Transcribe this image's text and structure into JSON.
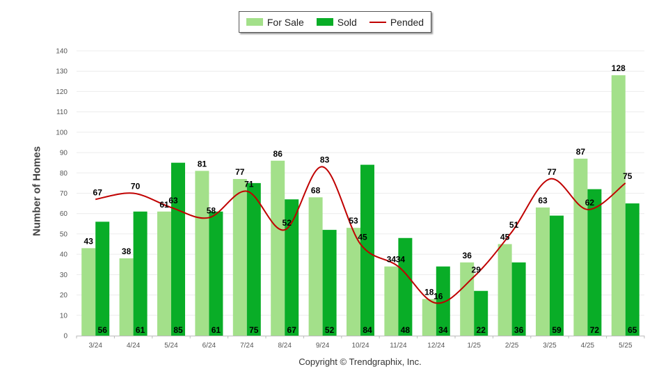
{
  "chart_data": {
    "type": "bar",
    "categories": [
      "3/24",
      "4/24",
      "5/24",
      "6/24",
      "7/24",
      "8/24",
      "9/24",
      "10/24",
      "11/24",
      "12/24",
      "1/25",
      "2/25",
      "3/25",
      "4/25",
      "5/25"
    ],
    "series": [
      {
        "name": "For Sale",
        "type": "bar",
        "color": "#a3e08a",
        "values": [
          43,
          38,
          61,
          81,
          77,
          86,
          68,
          53,
          34,
          18,
          36,
          45,
          63,
          87,
          128
        ]
      },
      {
        "name": "Sold",
        "type": "bar",
        "color": "#09ad27",
        "values": [
          56,
          61,
          85,
          61,
          75,
          67,
          52,
          84,
          48,
          34,
          22,
          36,
          59,
          72,
          65
        ]
      },
      {
        "name": "Pended",
        "type": "line",
        "color": "#c00000",
        "values": [
          67,
          70,
          63,
          58,
          71,
          52,
          83,
          45,
          34,
          16,
          29,
          51,
          77,
          62,
          75
        ]
      }
    ],
    "ylabel": "Number of Homes",
    "ylim": [
      0,
      140
    ],
    "yticks": [
      0,
      10,
      20,
      30,
      40,
      50,
      60,
      70,
      80,
      90,
      100,
      110,
      120,
      130,
      140
    ],
    "grid": true,
    "legend_position": "top-center"
  },
  "legend": [
    {
      "label": "For Sale",
      "color": "#a3e08a",
      "kind": "box"
    },
    {
      "label": "Sold",
      "color": "#09ad27",
      "kind": "box"
    },
    {
      "label": "Pended",
      "color": "#c00000",
      "kind": "line"
    }
  ],
  "footer": {
    "copyright": "Copyright © Trendgraphix, Inc."
  }
}
